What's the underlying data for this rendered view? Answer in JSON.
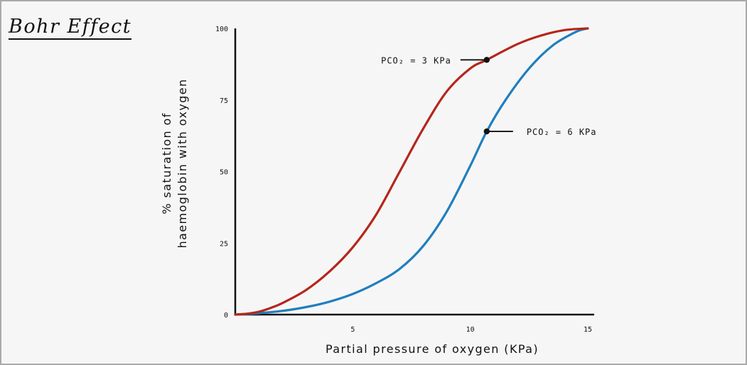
{
  "chart_data": {
    "type": "line",
    "title": "Bohr Effect",
    "xlabel": "Partial pressure of oxygen (KPa)",
    "ylabel": [
      "% saturation of",
      "haemoglobin with oxygen"
    ],
    "xlim": [
      0,
      15
    ],
    "ylim": [
      0,
      100
    ],
    "x_ticks": [
      {
        "value": 5,
        "label": "5"
      },
      {
        "value": 10,
        "label": "10"
      },
      {
        "value": 15,
        "label": "15"
      }
    ],
    "y_ticks": [
      {
        "value": 0,
        "label": "0"
      },
      {
        "value": 25,
        "label": "25"
      },
      {
        "value": 50,
        "label": "50"
      },
      {
        "value": 75,
        "label": "75"
      },
      {
        "value": 100,
        "label": "100"
      }
    ],
    "grid": false,
    "series": [
      {
        "name": "PCO₂ = 3 KPa",
        "color": "#b5261b",
        "points": [
          [
            0,
            0
          ],
          [
            0.5,
            0.3
          ],
          [
            1,
            1
          ],
          [
            1.5,
            2.3
          ],
          [
            2,
            4
          ],
          [
            3,
            8.5
          ],
          [
            4,
            15
          ],
          [
            5,
            23.5
          ],
          [
            6,
            35
          ],
          [
            7,
            50
          ],
          [
            8,
            65
          ],
          [
            9,
            78
          ],
          [
            10,
            86
          ],
          [
            10.7,
            89
          ],
          [
            12,
            94.5
          ],
          [
            13,
            97.5
          ],
          [
            14,
            99.4
          ],
          [
            15,
            100
          ]
        ]
      },
      {
        "name": "PCO₂ = 6 KPa",
        "color": "#1f7fbe",
        "points": [
          [
            0,
            0
          ],
          [
            1,
            0.5
          ],
          [
            2,
            1.3
          ],
          [
            3,
            2.6
          ],
          [
            4,
            4.5
          ],
          [
            5,
            7.2
          ],
          [
            6,
            11
          ],
          [
            7,
            16
          ],
          [
            8,
            24
          ],
          [
            9,
            36
          ],
          [
            10,
            52
          ],
          [
            10.7,
            64
          ],
          [
            11.5,
            75
          ],
          [
            12.5,
            86
          ],
          [
            13.5,
            94
          ],
          [
            14.5,
            98.8
          ],
          [
            15,
            100
          ]
        ]
      }
    ],
    "annotations": [
      {
        "series": "PCO₂ = 3 KPa",
        "text": "PCO₂ = 3 KPa",
        "x": 10.7,
        "y": 89,
        "side": "left"
      },
      {
        "series": "PCO₂ = 6 KPa",
        "text": "PCO₂ = 6 KPa",
        "x": 10.7,
        "y": 64,
        "side": "right"
      }
    ],
    "legend": "none"
  }
}
